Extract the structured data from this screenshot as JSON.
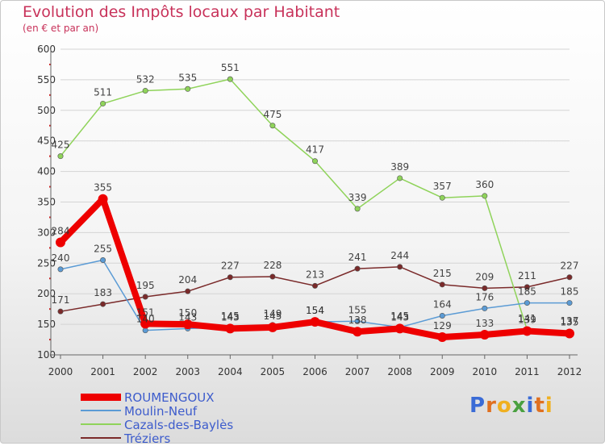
{
  "chart_data": {
    "type": "line",
    "title": "Evolution des Impôts locaux par Habitant",
    "subtitle": "(en € et par an)",
    "xlabel": "",
    "ylabel": "",
    "ylim": [
      100,
      600
    ],
    "yticks": [
      100,
      150,
      200,
      250,
      300,
      350,
      400,
      450,
      500,
      550,
      600
    ],
    "categories": [
      "2000",
      "2001",
      "2002",
      "2003",
      "2004",
      "2005",
      "2006",
      "2007",
      "2008",
      "2009",
      "2010",
      "2011",
      "2012"
    ],
    "series": [
      {
        "name": "ROUMENGOUX",
        "color": "#ee0000",
        "values": [
          284,
          355,
          151,
          150,
          143,
          145,
          154,
          138,
          143,
          129,
          133,
          139,
          135
        ],
        "bold": true
      },
      {
        "name": "Moulin-Neuf",
        "color": "#5b9bd5",
        "values": [
          240,
          255,
          140,
          143,
          145,
          149,
          154,
          155,
          145,
          164,
          176,
          185,
          185
        ]
      },
      {
        "name": "Cazals-des-Baylès",
        "color": "#8fd35a",
        "values": [
          425,
          511,
          532,
          535,
          551,
          475,
          417,
          339,
          389,
          357,
          360,
          141,
          137
        ]
      },
      {
        "name": "Tréziers",
        "color": "#7a2a2a",
        "values": [
          171,
          183,
          195,
          204,
          227,
          228,
          213,
          241,
          244,
          215,
          209,
          211,
          227
        ]
      }
    ]
  },
  "logo": {
    "letters": [
      "P",
      "r",
      "o",
      "x",
      "i",
      "t",
      "i"
    ],
    "colors": [
      "#3a6bd6",
      "#e07020",
      "#f0b020",
      "#4aa040",
      "#3a6bd6",
      "#e07020",
      "#f0b020"
    ]
  }
}
